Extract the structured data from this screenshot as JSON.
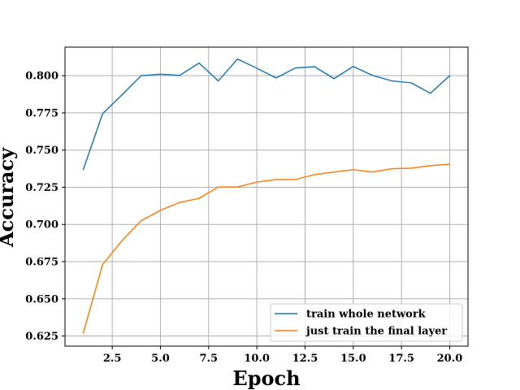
{
  "chart_data": {
    "type": "line",
    "title": "",
    "xlabel": "Epoch",
    "ylabel": "Accuracy",
    "xlim": [
      0.05,
      20.95
    ],
    "ylim": [
      0.6182,
      0.8192
    ],
    "xticks": [
      2.5,
      5.0,
      7.5,
      10.0,
      12.5,
      15.0,
      17.5,
      20.0
    ],
    "xtick_labels": [
      "2.5",
      "5.0",
      "7.5",
      "10.0",
      "12.5",
      "15.0",
      "17.5",
      "20.0"
    ],
    "yticks": [
      0.625,
      0.65,
      0.675,
      0.7,
      0.725,
      0.75,
      0.775,
      0.8
    ],
    "ytick_labels": [
      "0.625",
      "0.650",
      "0.675",
      "0.700",
      "0.725",
      "0.750",
      "0.775",
      "0.800"
    ],
    "grid": true,
    "legend_position": "lower-right",
    "x": [
      1,
      2,
      3,
      4,
      5,
      6,
      7,
      8,
      9,
      10,
      11,
      12,
      13,
      14,
      15,
      16,
      17,
      18,
      19,
      20
    ],
    "series": [
      {
        "name": "train whole network",
        "color": "#1f77b4",
        "values": [
          0.737,
          0.7745,
          0.787,
          0.8,
          0.801,
          0.8002,
          0.8085,
          0.7965,
          0.8112,
          0.805,
          0.7985,
          0.8052,
          0.806,
          0.798,
          0.8062,
          0.8002,
          0.7965,
          0.7952,
          0.7882,
          0.8
        ]
      },
      {
        "name": "just train the final layer",
        "color": "#ff7f0e",
        "values": [
          0.627,
          0.673,
          0.689,
          0.7025,
          0.7095,
          0.7148,
          0.7175,
          0.7252,
          0.7252,
          0.7285,
          0.7302,
          0.7302,
          0.7335,
          0.7352,
          0.7368,
          0.7352,
          0.7375,
          0.7378,
          0.7395,
          0.7405
        ]
      }
    ]
  }
}
